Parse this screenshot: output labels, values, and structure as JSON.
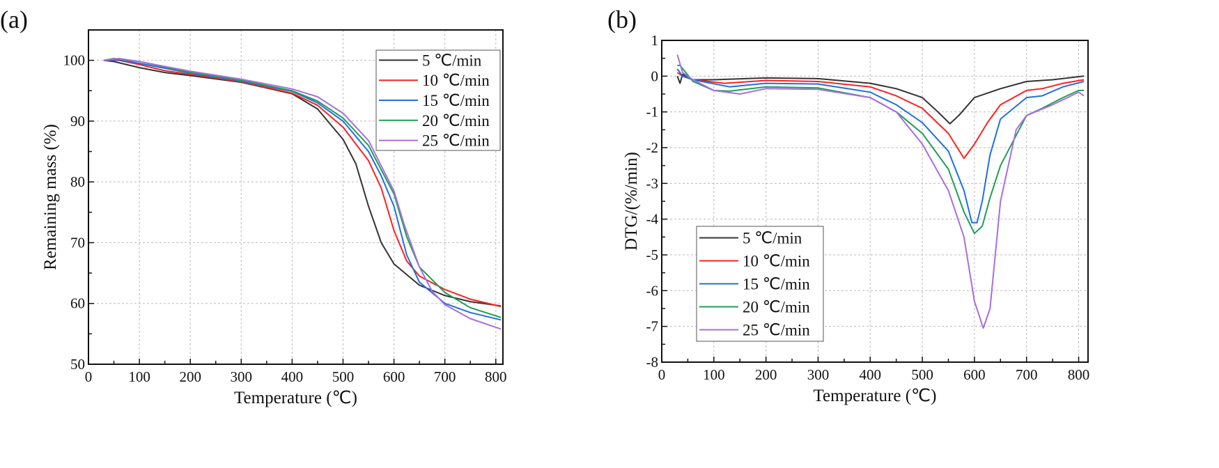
{
  "chart_data": [
    {
      "type": "line",
      "panel_label": "(a)",
      "xlabel": "Temperature (℃)",
      "ylabel": "Remaining mass (%)",
      "xlim": [
        0,
        814
      ],
      "ylim": [
        50,
        105
      ],
      "xticks": [
        0,
        100,
        200,
        300,
        400,
        500,
        600,
        700,
        800
      ],
      "yticks": [
        50,
        60,
        70,
        80,
        90,
        100
      ],
      "grid": true,
      "legend_position": "top-right",
      "series": [
        {
          "name": "5 ℃/min",
          "color": "#333333",
          "x": [
            30,
            50,
            100,
            150,
            200,
            300,
            400,
            450,
            500,
            525,
            550,
            575,
            600,
            650,
            700,
            750,
            810
          ],
          "y": [
            100,
            99.8,
            98.8,
            98,
            97.5,
            96.4,
            94.5,
            92,
            87,
            83,
            76,
            70,
            66.5,
            63,
            61.3,
            60.3,
            59.6
          ]
        },
        {
          "name": "10 ℃/min",
          "color": "#ff2020",
          "x": [
            30,
            60,
            100,
            150,
            200,
            300,
            400,
            450,
            500,
            550,
            575,
            600,
            625,
            650,
            700,
            750,
            810
          ],
          "y": [
            100,
            100,
            99.3,
            98.3,
            97.7,
            96.5,
            94.6,
            92.6,
            89,
            83.5,
            79,
            72,
            67,
            64.5,
            62.3,
            60.7,
            59.5
          ]
        },
        {
          "name": "15 ℃/min",
          "color": "#1f6fe0",
          "x": [
            30,
            60,
            100,
            200,
            300,
            400,
            450,
            500,
            550,
            575,
            600,
            625,
            650,
            700,
            750,
            810
          ],
          "y": [
            100,
            100.1,
            99.5,
            97.9,
            96.6,
            94.9,
            93,
            90,
            85,
            81,
            76,
            68,
            63.5,
            60,
            58.5,
            57.3
          ]
        },
        {
          "name": "20 ℃/min",
          "color": "#1e9e55",
          "x": [
            30,
            50,
            100,
            200,
            300,
            400,
            450,
            500,
            550,
            600,
            625,
            650,
            700,
            750,
            810
          ],
          "y": [
            100,
            100.3,
            99.8,
            98,
            96.7,
            95,
            93.3,
            90.5,
            86,
            78,
            71,
            66,
            61.8,
            59.3,
            57.7
          ]
        },
        {
          "name": "25 ℃/min",
          "color": "#a86ee0",
          "x": [
            30,
            60,
            100,
            200,
            300,
            400,
            450,
            500,
            550,
            600,
            620,
            650,
            675,
            700,
            750,
            810
          ],
          "y": [
            100,
            100.3,
            99.8,
            98.2,
            96.9,
            95.3,
            94,
            91.3,
            86.8,
            78.5,
            73,
            66,
            62,
            59.8,
            57.5,
            55.8
          ]
        }
      ]
    },
    {
      "type": "line",
      "panel_label": "(b)",
      "xlabel": "Temperature (℃)",
      "ylabel": "DTG/(%/min)",
      "xlim": [
        0,
        818
      ],
      "ylim": [
        -8,
        1
      ],
      "xticks": [
        0,
        100,
        200,
        300,
        400,
        500,
        600,
        700,
        800
      ],
      "yticks": [
        -8,
        -7,
        -6,
        -5,
        -4,
        -3,
        -2,
        -1,
        0,
        1
      ],
      "grid": true,
      "legend_position": "bottom-left",
      "series": [
        {
          "name": "5 ℃/min",
          "color": "#333333",
          "x": [
            30,
            35,
            40,
            60,
            100,
            200,
            300,
            400,
            450,
            500,
            530,
            553,
            570,
            600,
            650,
            700,
            750,
            810
          ],
          "y": [
            0,
            -0.2,
            0.05,
            -0.1,
            -0.1,
            -0.05,
            -0.07,
            -0.2,
            -0.35,
            -0.6,
            -1,
            -1.33,
            -1.1,
            -0.6,
            -0.35,
            -0.15,
            -0.1,
            0
          ]
        },
        {
          "name": "10 ℃/min",
          "color": "#ff2020",
          "x": [
            30,
            40,
            60,
            120,
            200,
            300,
            400,
            450,
            500,
            550,
            580,
            600,
            625,
            650,
            700,
            730,
            770,
            810
          ],
          "y": [
            0.1,
            0,
            -0.1,
            -0.2,
            -0.12,
            -0.15,
            -0.3,
            -0.55,
            -0.9,
            -1.6,
            -2.3,
            -1.9,
            -1.3,
            -0.8,
            -0.4,
            -0.35,
            -0.2,
            -0.1
          ]
        },
        {
          "name": "15 ℃/min",
          "color": "#1f6fe0",
          "x": [
            30,
            40,
            60,
            130,
            200,
            300,
            400,
            450,
            500,
            550,
            580,
            595,
            605,
            615,
            630,
            650,
            700,
            730,
            770,
            810
          ],
          "y": [
            0.2,
            0,
            -0.1,
            -0.3,
            -0.2,
            -0.22,
            -0.45,
            -0.8,
            -1.3,
            -2.1,
            -3.2,
            -4.1,
            -4.1,
            -3.5,
            -2.2,
            -1.2,
            -0.6,
            -0.55,
            -0.3,
            -0.15
          ]
        },
        {
          "name": "20 ℃/min",
          "color": "#1e9e55",
          "x": [
            30,
            35,
            60,
            100,
            130,
            200,
            300,
            400,
            450,
            500,
            550,
            580,
            600,
            615,
            630,
            650,
            700,
            730,
            770,
            800,
            810
          ],
          "y": [
            0.3,
            0.3,
            -0.15,
            -0.4,
            -0.42,
            -0.3,
            -0.33,
            -0.6,
            -1,
            -1.6,
            -2.6,
            -3.8,
            -4.4,
            -4.2,
            -3.4,
            -2.5,
            -1.1,
            -0.9,
            -0.6,
            -0.4,
            -0.4
          ]
        },
        {
          "name": "25 ℃/min",
          "color": "#a86ee0",
          "x": [
            30,
            40,
            60,
            100,
            150,
            200,
            300,
            400,
            450,
            500,
            550,
            580,
            600,
            617,
            630,
            650,
            680,
            700,
            750,
            800,
            810
          ],
          "y": [
            0.6,
            0.1,
            -0.1,
            -0.4,
            -0.5,
            -0.35,
            -0.37,
            -0.6,
            -1,
            -1.9,
            -3.2,
            -4.5,
            -6.3,
            -7.05,
            -6.5,
            -3.5,
            -1.5,
            -1.1,
            -0.8,
            -0.45,
            -0.55
          ]
        }
      ]
    }
  ]
}
